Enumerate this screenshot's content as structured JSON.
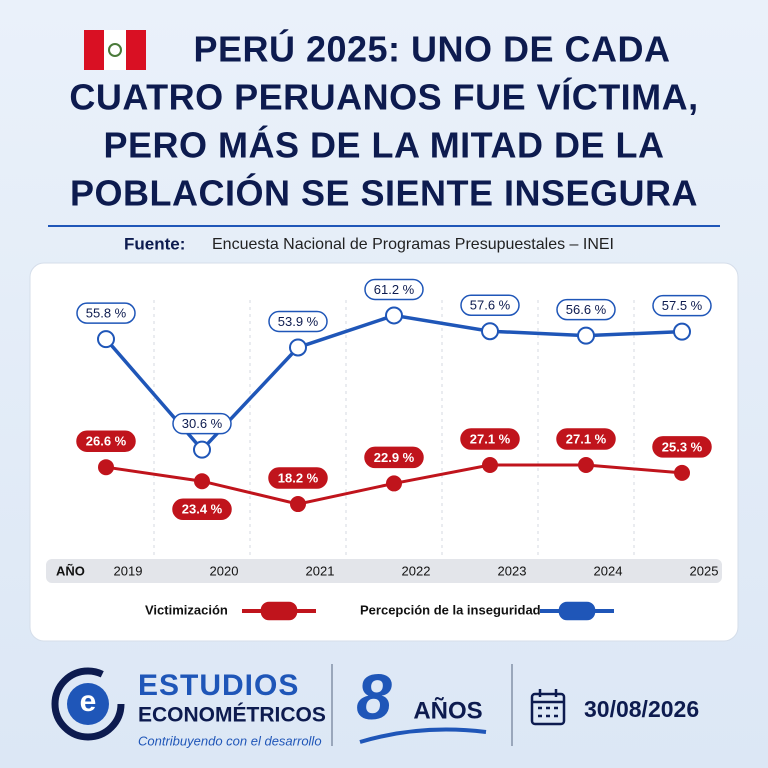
{
  "header": {
    "title_lines": [
      "PERÚ 2025: UNO DE CADA",
      "CUATRO PERUANOS FUE VÍCTIMA,",
      "PERO MÁS DE LA MITAD DE LA",
      "POBLACIÓN SE SIENTE INSEGURA"
    ],
    "source_label": "Fuente:",
    "source": "Encuesta Nacional de Programas Presupuestales – INEI"
  },
  "chart_data": {
    "type": "line",
    "x_label": "AÑO",
    "categories": [
      "2019",
      "2020",
      "2021",
      "2022",
      "2023",
      "2024",
      "2025"
    ],
    "ylim": [
      10,
      67
    ],
    "series": [
      {
        "name": "Victimización",
        "color": "#c0141c",
        "values": [
          26.6,
          23.4,
          18.2,
          22.9,
          27.1,
          27.1,
          25.3
        ],
        "value_labels": [
          "26.6 %",
          "23.4 %",
          "18.2 %",
          "22.9 %",
          "27.1 %",
          "27.1 %",
          "25.3 %"
        ]
      },
      {
        "name": "Percepción de la inseguridad",
        "color": "#1f56b8",
        "values": [
          55.8,
          30.6,
          53.9,
          61.2,
          57.6,
          56.6,
          57.5
        ],
        "value_labels": [
          "55.8 %",
          "30.6 %",
          "53.9 %",
          "61.2 %",
          "57.6 %",
          "56.6 %",
          "57.5 %"
        ]
      }
    ]
  },
  "footer": {
    "brand_line1": "ESTUDIOS",
    "brand_line2": "ECONOMÉTRICOS",
    "tagline": "Contribuyendo con el desarrollo",
    "years_number": "8",
    "years_word": "AÑOS",
    "date": "30/08/2026"
  }
}
